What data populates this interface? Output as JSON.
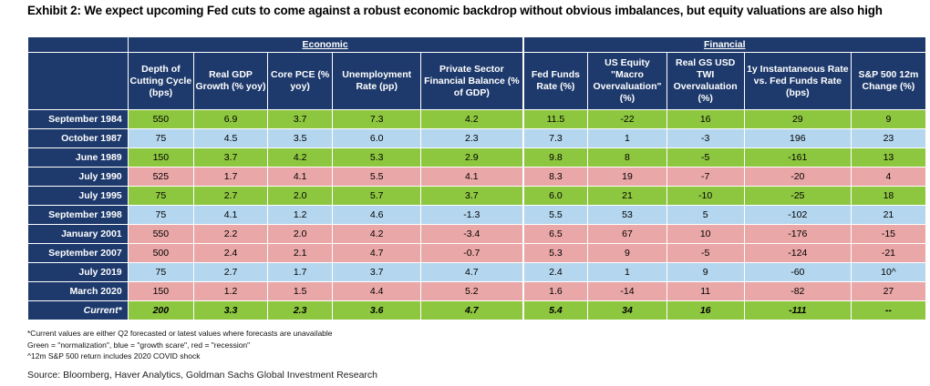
{
  "title": "Exhibit 2: We expect upcoming Fed cuts to come against a robust economic backdrop without obvious imbalances, but equity valuations are also high",
  "group_headers": {
    "economic": "Economic",
    "financial": "Financial"
  },
  "columns": [
    "Depth of Cutting Cycle (bps)",
    "Real GDP Growth (% yoy)",
    "Core PCE (% yoy)",
    "Unemployment Rate (pp)",
    "Private Sector Financial Balance (% of GDP)",
    "Fed Funds Rate (%)",
    "US Equity \"Macro Overvaluation\" (%)",
    "Real GS USD TWI Overvaluation (%)",
    "1y Instantaneous Rate vs. Fed Funds Rate (bps)",
    "S&P 500 12m Change (%)"
  ],
  "rows": [
    {
      "label": "September 1984",
      "color": "green",
      "values": [
        "550",
        "6.9",
        "3.7",
        "7.3",
        "4.2",
        "11.5",
        "-22",
        "16",
        "29",
        "9"
      ]
    },
    {
      "label": "October 1987",
      "color": "blue",
      "values": [
        "75",
        "4.5",
        "3.5",
        "6.0",
        "2.3",
        "7.3",
        "1",
        "-3",
        "196",
        "23"
      ]
    },
    {
      "label": "June 1989",
      "color": "green",
      "values": [
        "150",
        "3.7",
        "4.2",
        "5.3",
        "2.9",
        "9.8",
        "8",
        "-5",
        "-161",
        "13"
      ]
    },
    {
      "label": "July 1990",
      "color": "red",
      "values": [
        "525",
        "1.7",
        "4.1",
        "5.5",
        "4.1",
        "8.3",
        "19",
        "-7",
        "-20",
        "4"
      ]
    },
    {
      "label": "July 1995",
      "color": "green",
      "values": [
        "75",
        "2.7",
        "2.0",
        "5.7",
        "3.7",
        "6.0",
        "21",
        "-10",
        "-25",
        "18"
      ]
    },
    {
      "label": "September 1998",
      "color": "blue",
      "values": [
        "75",
        "4.1",
        "1.2",
        "4.6",
        "-1.3",
        "5.5",
        "53",
        "5",
        "-102",
        "21"
      ]
    },
    {
      "label": "January 2001",
      "color": "red",
      "values": [
        "550",
        "2.2",
        "2.0",
        "4.2",
        "-3.4",
        "6.5",
        "67",
        "10",
        "-176",
        "-15"
      ]
    },
    {
      "label": "September 2007",
      "color": "red",
      "values": [
        "500",
        "2.4",
        "2.1",
        "4.7",
        "-0.7",
        "5.3",
        "9",
        "-5",
        "-124",
        "-21"
      ]
    },
    {
      "label": "July 2019",
      "color": "blue",
      "values": [
        "75",
        "2.7",
        "1.7",
        "3.7",
        "4.7",
        "2.4",
        "1",
        "9",
        "-60",
        "10^"
      ]
    },
    {
      "label": "March 2020",
      "color": "red",
      "values": [
        "150",
        "1.2",
        "1.5",
        "4.4",
        "5.2",
        "1.6",
        "-14",
        "11",
        "-82",
        "27"
      ]
    },
    {
      "label": "Current*",
      "color": "green",
      "values": [
        "200",
        "3.3",
        "2.3",
        "3.6",
        "4.7",
        "5.4",
        "34",
        "16",
        "-111",
        "--"
      ]
    }
  ],
  "notes": [
    "*Current values are either Q2 forecasted or latest values where forecasts are unavailable",
    "Green = \"normalization\", blue = \"growth scare\", red = \"recession\"",
    "^12m S&P 500 return includes 2020 COVID shock"
  ],
  "source": "Source: Bloomberg, Haver Analytics, Goldman Sachs Global Investment Research",
  "colors": {
    "header": "#1e3a6c",
    "green": "#8dc63f",
    "blue": "#b4d6ee",
    "red": "#eaa7a7"
  }
}
